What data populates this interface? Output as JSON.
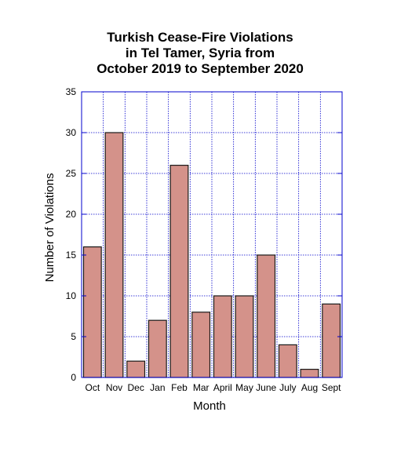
{
  "chart_data": {
    "type": "bar",
    "title_lines": [
      "Turkish Cease-Fire Violations",
      "in Tel Tamer, Syria from",
      "October 2019 to September 2020"
    ],
    "xlabel": "Month",
    "ylabel": "Number of Violations",
    "categories": [
      "Oct",
      "Nov",
      "Dec",
      "Jan",
      "Feb",
      "Mar",
      "April",
      "May",
      "June",
      "July",
      "Aug",
      "Sept"
    ],
    "values": [
      16,
      30,
      2,
      7,
      26,
      8,
      10,
      10,
      15,
      4,
      1,
      9
    ],
    "ylim": [
      0,
      35
    ],
    "yticks": [
      0,
      5,
      10,
      15,
      20,
      25,
      30,
      35
    ],
    "ytick_labels": [
      "0",
      "5",
      "10",
      "15",
      "20",
      "25",
      "30",
      "35"
    ],
    "grid": true,
    "legend": "none",
    "colors": {
      "bar_fill": "#d4928a",
      "bar_stroke": "#1a1a1a",
      "frame": "#0000cc",
      "grid": "#0000cc"
    }
  }
}
